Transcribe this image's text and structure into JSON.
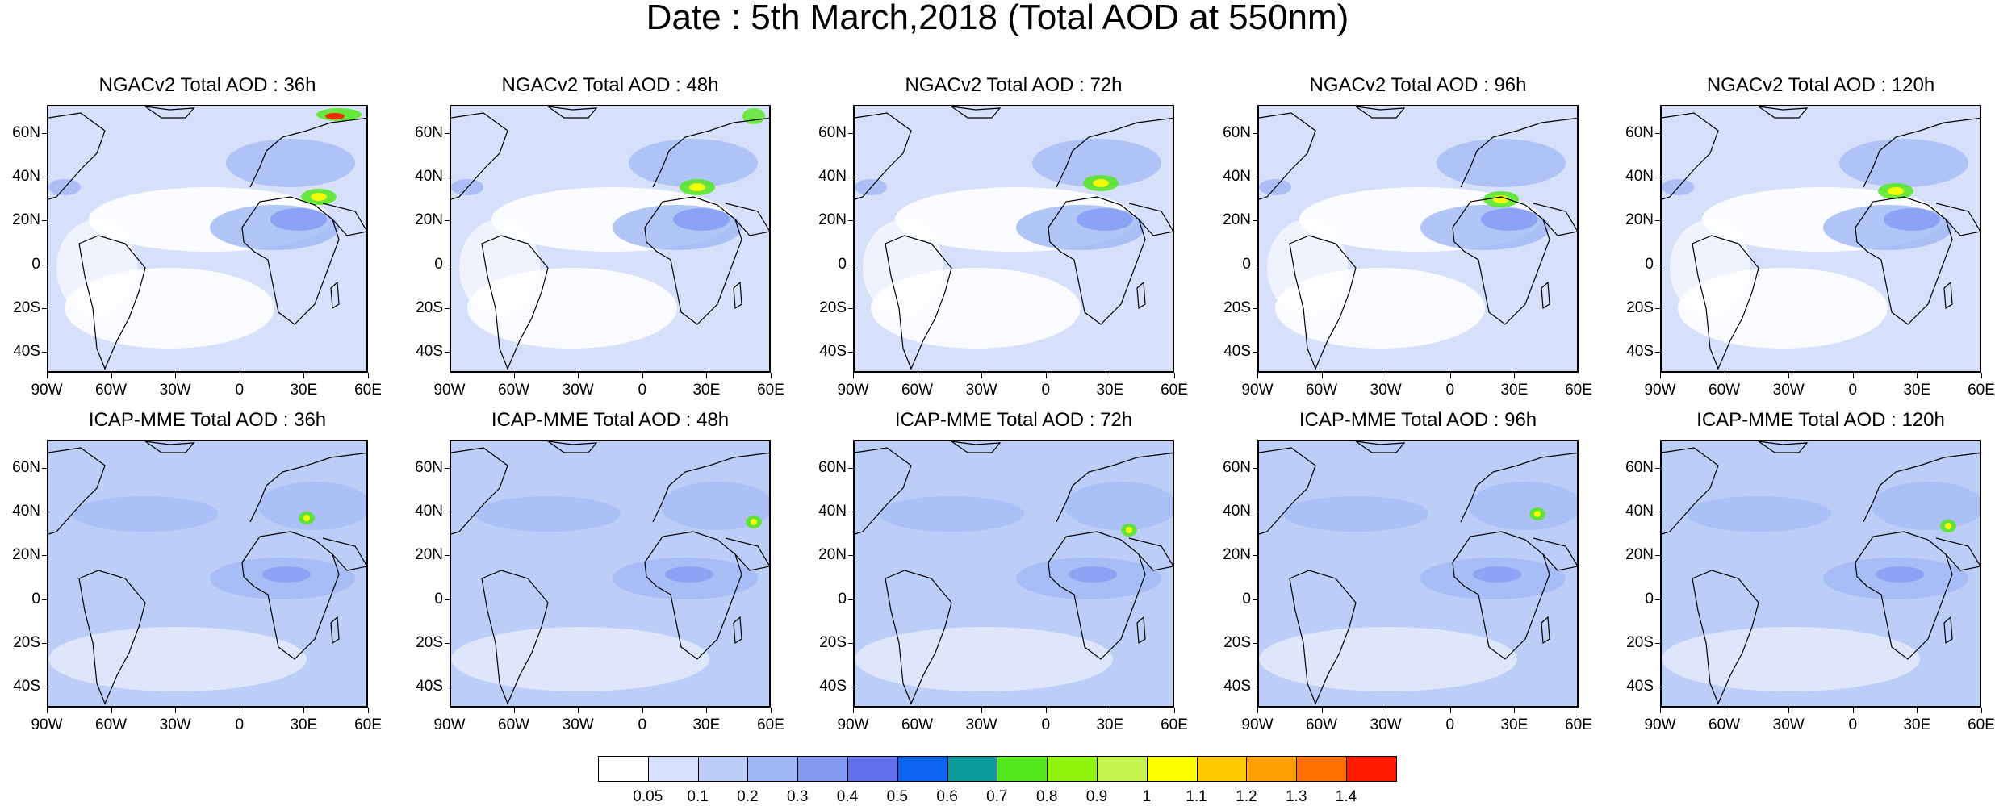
{
  "title": "Date : 5th March,2018 (Total AOD at 550nm)",
  "lat_labels": [
    "60N",
    "40N",
    "20N",
    "0",
    "20S",
    "40S"
  ],
  "lon_labels": [
    "90W",
    "60W",
    "30W",
    "0",
    "30E",
    "60E"
  ],
  "rows": [
    {
      "model": "NGACv2",
      "panels": [
        {
          "title": "NGACv2 Total AOD : 36h"
        },
        {
          "title": "NGACv2 Total AOD : 48h"
        },
        {
          "title": "NGACv2 Total AOD : 72h"
        },
        {
          "title": "NGACv2 Total AOD : 96h"
        },
        {
          "title": "NGACv2 Total AOD : 120h"
        }
      ]
    },
    {
      "model": "ICAP-MME",
      "panels": [
        {
          "title": "ICAP-MME Total AOD : 36h"
        },
        {
          "title": "ICAP-MME Total AOD : 48h"
        },
        {
          "title": "ICAP-MME Total AOD : 72h"
        },
        {
          "title": "ICAP-MME Total AOD : 96h"
        },
        {
          "title": "ICAP-MME Total AOD : 120h"
        }
      ]
    }
  ],
  "colorbar": {
    "labels": [
      "0.05",
      "0.1",
      "0.2",
      "0.3",
      "0.4",
      "0.5",
      "0.6",
      "0.7",
      "0.8",
      "0.9",
      "1",
      "1.1",
      "1.2",
      "1.3",
      "1.4"
    ],
    "colors": [
      "#ffffff",
      "#d6e0fb",
      "#bccdf8",
      "#9fb7f5",
      "#8399f2",
      "#6370ec",
      "#0c63f0",
      "#0a9a9a",
      "#54e81c",
      "#8ff60a",
      "#c6f64d",
      "#ffff00",
      "#ffc800",
      "#ffa000",
      "#ff7000",
      "#ff1a00"
    ]
  }
}
